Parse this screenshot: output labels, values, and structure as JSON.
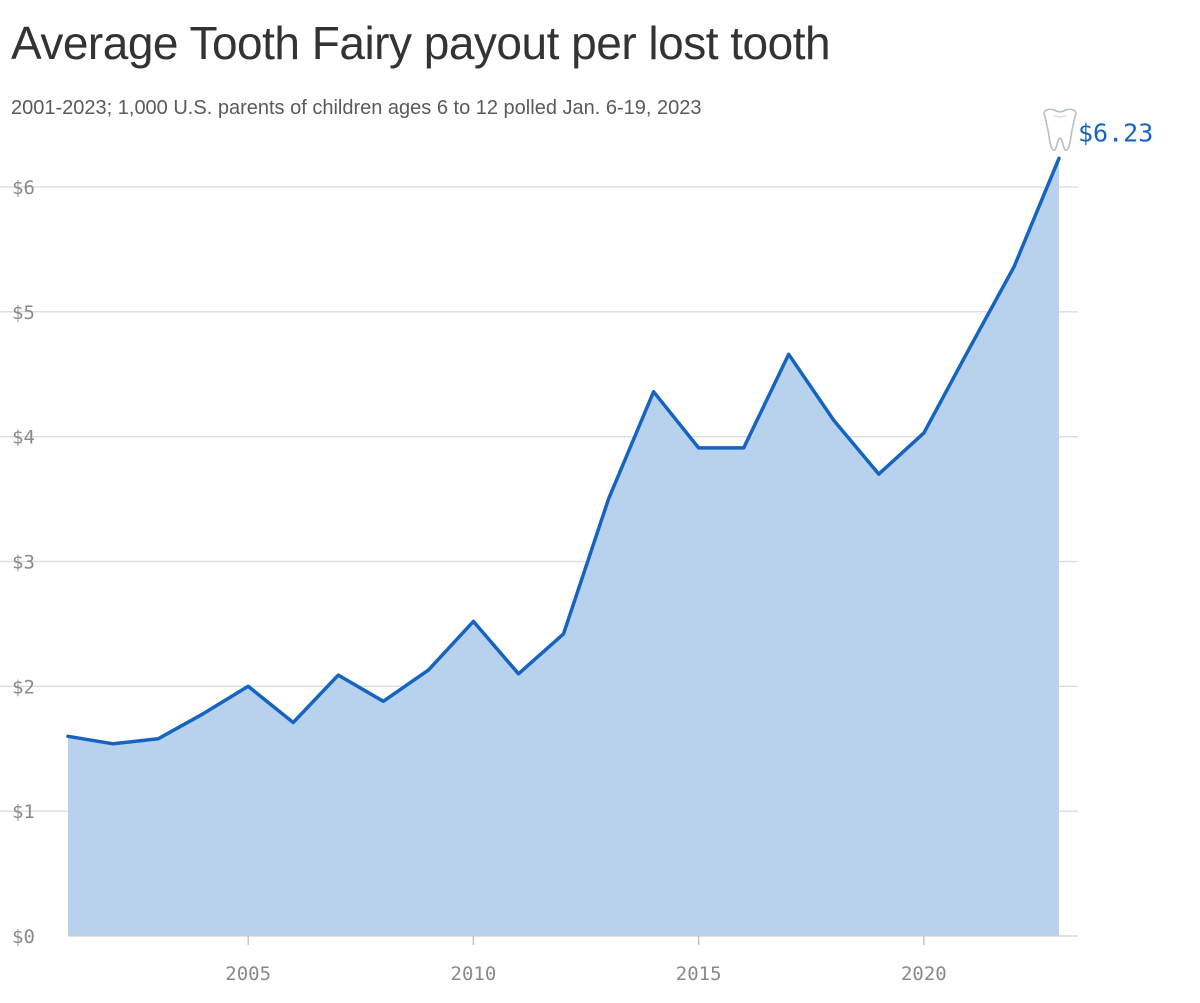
{
  "chart_data": {
    "type": "area",
    "title": "Average Tooth Fairy payout per lost tooth",
    "subtitle": "2001-2023; 1,000 U.S. parents of children ages 6 to 12 polled Jan. 6-19, 2023",
    "x": [
      2001,
      2002,
      2003,
      2004,
      2005,
      2006,
      2007,
      2008,
      2009,
      2010,
      2011,
      2012,
      2013,
      2014,
      2015,
      2016,
      2017,
      2018,
      2019,
      2020,
      2021,
      2022,
      2023
    ],
    "values": [
      1.6,
      1.54,
      1.58,
      1.78,
      2.0,
      1.71,
      2.09,
      1.88,
      2.13,
      2.52,
      2.1,
      2.42,
      3.5,
      4.36,
      3.91,
      3.91,
      4.66,
      4.13,
      3.7,
      4.03,
      4.7,
      5.36,
      6.23
    ],
    "xlim": [
      2001,
      2023
    ],
    "ylim": [
      0,
      6
    ],
    "x_ticks": [
      2005,
      2010,
      2015,
      2020
    ],
    "y_ticks": [
      0,
      1,
      2,
      3,
      4,
      5,
      6
    ],
    "y_tick_labels": [
      "$0",
      "$1",
      "$2",
      "$3",
      "$4",
      "$5",
      "$6"
    ],
    "grid": true,
    "end_label": "$6.23",
    "end_icon": "tooth-icon",
    "colors": {
      "line": "#1565c0",
      "fill": "#b8d2ee",
      "grid": "#dcdcdc"
    }
  }
}
